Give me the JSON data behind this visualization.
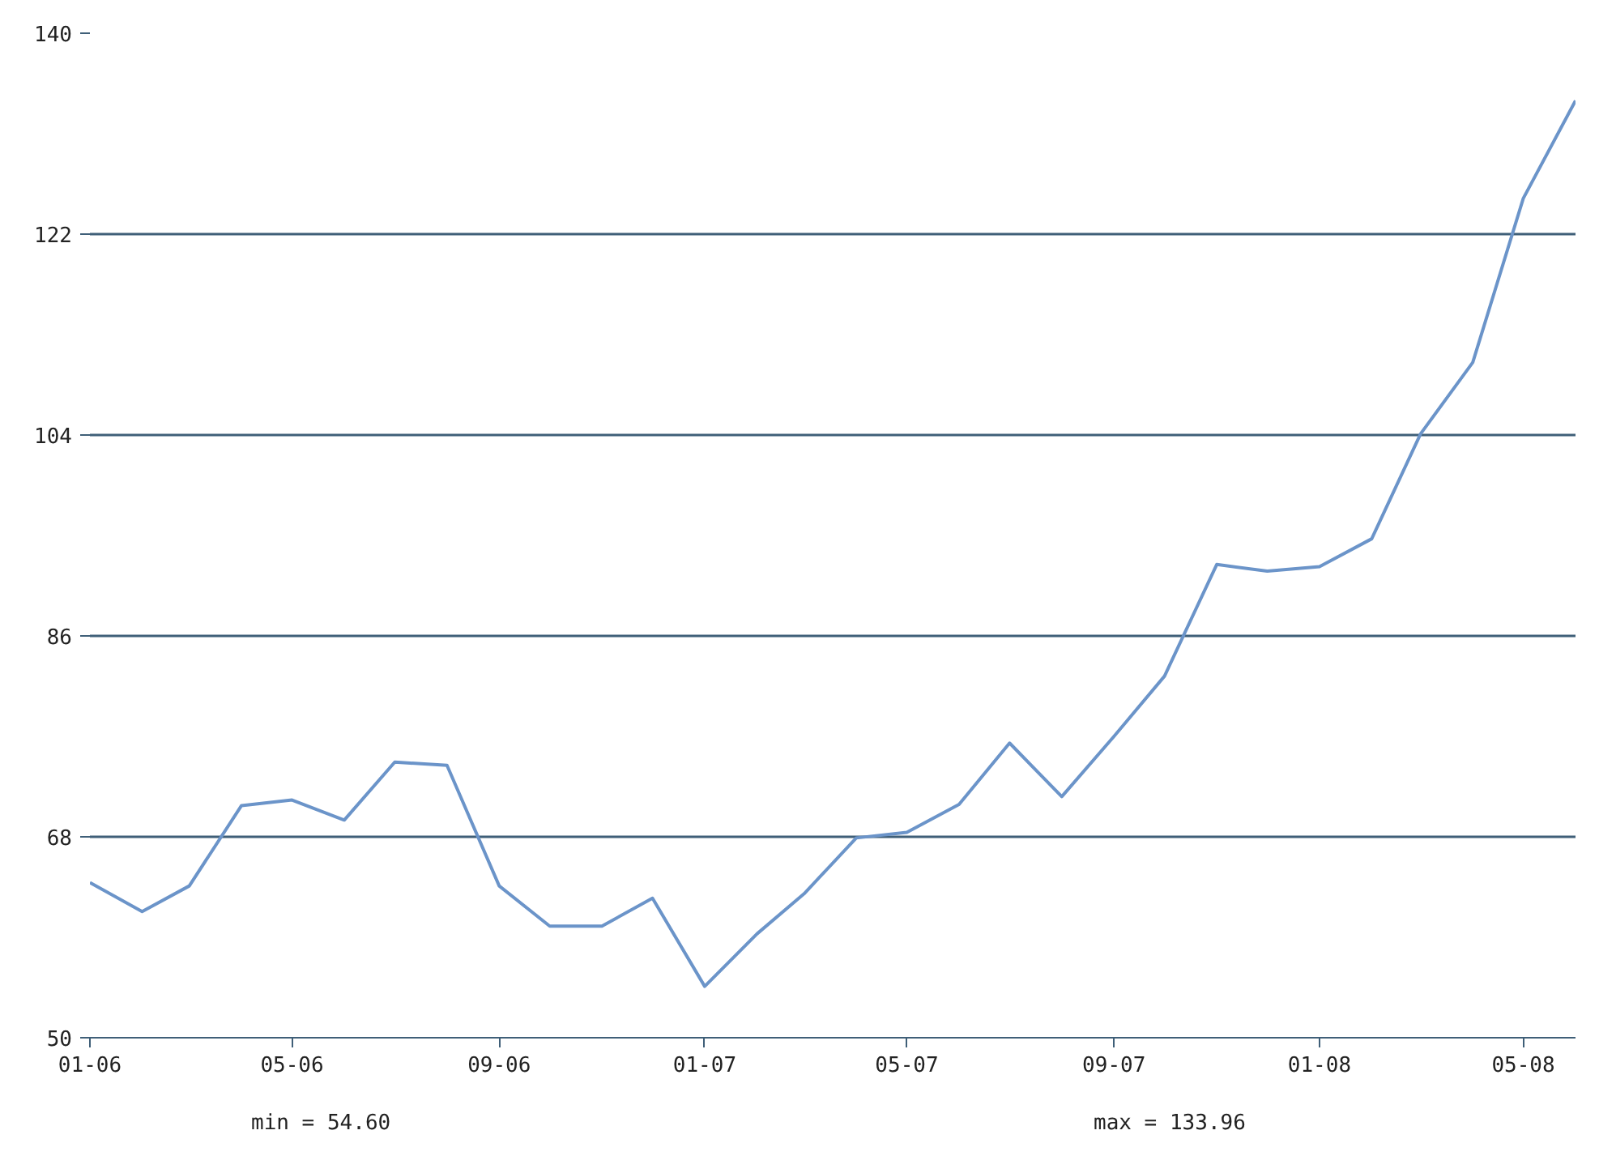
{
  "chart_data": {
    "type": "line",
    "x": [
      "2006-01",
      "2006-02",
      "2006-03",
      "2006-04",
      "2006-05",
      "2006-06",
      "2006-07",
      "2006-08",
      "2006-09",
      "2006-10",
      "2006-11",
      "2006-12",
      "2007-01",
      "2007-02",
      "2007-03",
      "2007-04",
      "2007-05",
      "2007-06",
      "2007-07",
      "2007-08",
      "2007-09",
      "2007-10",
      "2007-11",
      "2007-12",
      "2008-01",
      "2008-02",
      "2008-03",
      "2008-04",
      "2008-05",
      "2008-06"
    ],
    "series": [
      {
        "color": "#6b94c9",
        "values": [
          63.9,
          61.3,
          63.6,
          70.8,
          71.3,
          69.5,
          74.7,
          74.4,
          63.6,
          60.0,
          60.0,
          62.5,
          54.6,
          59.3,
          62.9,
          67.9,
          68.4,
          70.9,
          76.4,
          71.6,
          77.0,
          82.4,
          92.4,
          91.8,
          92.2,
          94.7,
          104.1,
          110.5,
          125.2,
          133.96
        ]
      }
    ],
    "xlim": [
      "2006-01",
      "2008-06"
    ],
    "xticks": [
      {
        "value": "2006-01",
        "label": "01-06"
      },
      {
        "value": "2006-05",
        "label": "05-06"
      },
      {
        "value": "2006-09",
        "label": "09-06"
      },
      {
        "value": "2007-01",
        "label": "01-07"
      },
      {
        "value": "2007-05",
        "label": "05-07"
      },
      {
        "value": "2007-09",
        "label": "09-07"
      },
      {
        "value": "2008-01",
        "label": "01-08"
      },
      {
        "value": "2008-05",
        "label": "05-08"
      }
    ],
    "ylim": [
      50,
      140
    ],
    "yticks": [
      50,
      68,
      86,
      104,
      122,
      140
    ],
    "grid": "y",
    "marker": "none",
    "line_style": "solid",
    "annotations": [
      "min = 54.60",
      "max = 133.96"
    ]
  }
}
